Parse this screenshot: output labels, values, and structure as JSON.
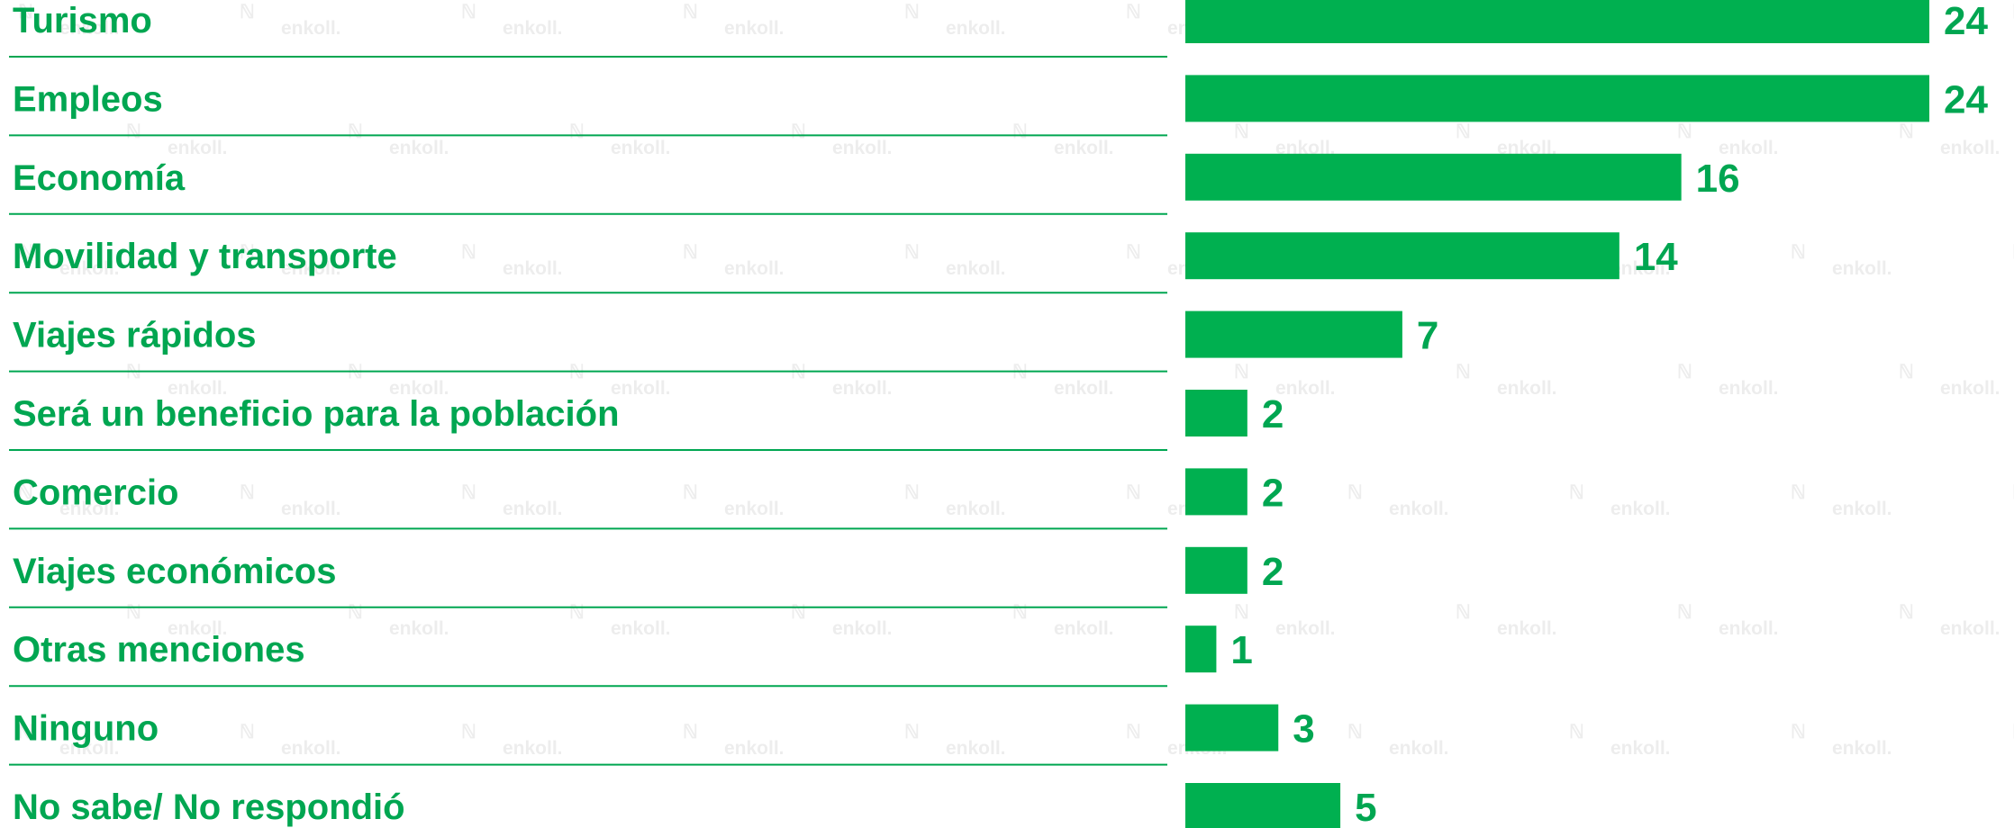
{
  "watermark": {
    "text": "enkoll.",
    "icon": "enkoll-logo-icon"
  },
  "colors": {
    "bar": "#00b050",
    "label": "#00a651",
    "divider": "#00a651",
    "watermark": "#d9d9d9"
  },
  "chart_data": {
    "type": "bar",
    "orientation": "horizontal",
    "categories": [
      "Turismo",
      "Empleos",
      "Economía",
      "Movilidad y transporte",
      "Viajes rápidos",
      "Será un beneficio para la población",
      "Comercio",
      "Viajes económicos",
      "Otras menciones",
      "Ninguno",
      "No sabe/ No respondió"
    ],
    "values": [
      24,
      24,
      16,
      14,
      7,
      2,
      2,
      2,
      1,
      3,
      5
    ],
    "data_labels": [
      "24",
      "24",
      "16",
      "14",
      "7",
      "2",
      "2",
      "2",
      "1",
      "3",
      "5"
    ],
    "xlim": [
      0,
      24
    ],
    "grid": false,
    "legend": "none"
  }
}
